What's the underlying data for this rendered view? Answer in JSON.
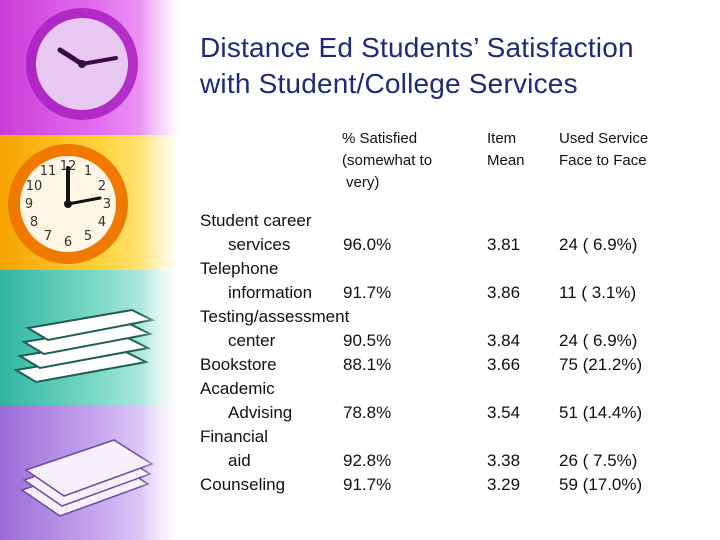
{
  "title": {
    "line1": "Distance Ed Students’ Satisfaction",
    "line2": "with Student/College Services"
  },
  "headers": {
    "pct_satisfied": [
      "% Satisfied",
      "(somewhat to",
      "very)"
    ],
    "item_mean": [
      "Item",
      "Mean"
    ],
    "used_face": [
      "Used Service",
      "Face to Face"
    ]
  },
  "labels": {
    "l1": "Student career",
    "l2": "services",
    "l3": "Telephone",
    "l4": "information",
    "l5": "Testing/assessment",
    "l6": "center",
    "l7": "Bookstore",
    "l8": "Academic",
    "l9": "Advising",
    "l10": "Financial",
    "l11": "aid",
    "l12": "Counseling"
  },
  "rows": [
    {
      "pct": "96.0%",
      "mean": "3.81",
      "face": "24 (  6.9%)"
    },
    {
      "pct": "91.7%",
      "mean": "3.86",
      "face": "11 (  3.1%)"
    },
    {
      "pct": "90.5%",
      "mean": "3.84",
      "face": "24 (  6.9%)"
    },
    {
      "pct": "88.1%",
      "mean": "3.66",
      "face": "75 (21.2%)"
    },
    {
      "pct": "78.8%",
      "mean": "3.54",
      "face": "51 (14.4%)"
    },
    {
      "pct": "92.8%",
      "mean": "3.38",
      "face": "26 (  7.5%)"
    },
    {
      "pct": "91.7%",
      "mean": "3.29",
      "face": "59 (17.0%)"
    }
  ],
  "decor": {
    "images": [
      "clock-purple",
      "clock-orange",
      "book-stack-green",
      "paper-stack-purple"
    ]
  }
}
